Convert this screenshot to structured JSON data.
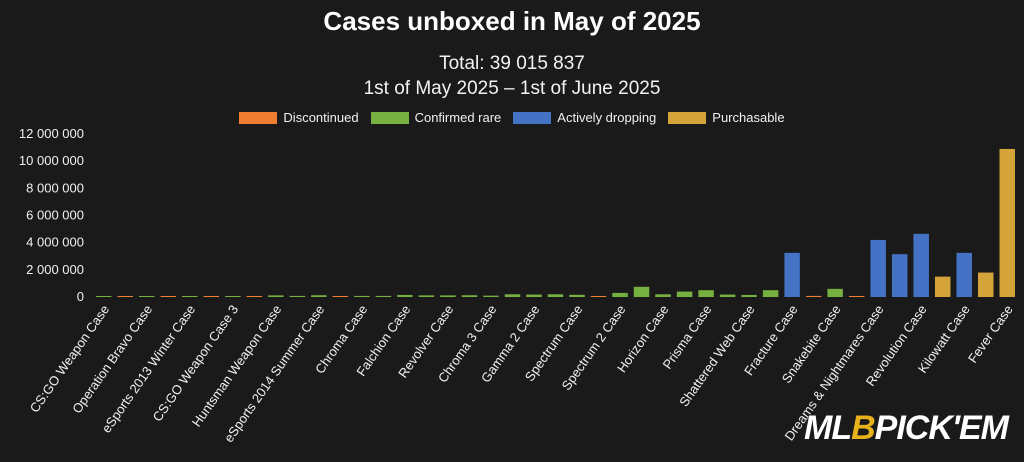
{
  "chart_data": {
    "type": "bar",
    "title": "Cases unboxed in May of 2025",
    "subtitle": [
      "Total: 39 015 837",
      "1st of May 2025 – 1st of June 2025"
    ],
    "xlabel": "",
    "ylabel": "",
    "ylim": [
      0,
      12000000
    ],
    "yticks": [
      0,
      2000000,
      4000000,
      6000000,
      8000000,
      10000000,
      12000000
    ],
    "ytick_labels": [
      "0",
      "2 000 000",
      "4 000 000",
      "6 000 000",
      "8 000 000",
      "10 000 000",
      "12 000 000"
    ],
    "legend_position": "top",
    "legend": [
      {
        "name": "Discontinued",
        "color": "#ef7d32"
      },
      {
        "name": "Confirmed rare",
        "color": "#76b041"
      },
      {
        "name": "Actively dropping",
        "color": "#4472c4"
      },
      {
        "name": "Purchasable",
        "color": "#d4a43a"
      }
    ],
    "categories": [
      "CS:GO Weapon Case",
      "",
      "Operation Bravo Case",
      "",
      "eSports 2013 Winter Case",
      "",
      "CS:GO Weapon Case 3",
      "",
      "Huntsman Weapon Case",
      "",
      "eSports 2014 Summer Case",
      "",
      "Chroma Case",
      "",
      "Falchion Case",
      "",
      "Revolver Case",
      "",
      "Chroma 3 Case",
      "",
      "Gamma 2 Case",
      "",
      "Spectrum Case",
      "",
      "Spectrum 2 Case",
      "",
      "Horizon Case",
      "",
      "Prisma Case",
      "",
      "Shattered Web Case",
      "",
      "Fracture Case",
      "",
      "Snakebite Case",
      "",
      "Dreams & Nightmares Case",
      "",
      "Revolution Case",
      "",
      "Kilowatt Case",
      "",
      "Fever Case"
    ],
    "category_labels": [
      "CS:GO Weapon Case",
      "Operation Bravo Case",
      "eSports 2013 Winter Case",
      "CS:GO Weapon Case 3",
      "Huntsman Weapon Case",
      "eSports 2014 Summer Case",
      "Chroma Case",
      "Falchion Case",
      "Revolver Case",
      "Chroma 3 Case",
      "Gamma 2 Case",
      "Spectrum Case",
      "Spectrum 2 Case",
      "Horizon Case",
      "Prisma Case",
      "Shattered Web Case",
      "Fracture Case",
      "Snakebite Case",
      "Dreams & Nightmares Case",
      "Revolution Case",
      "Kilowatt Case",
      "Fever Case"
    ],
    "values": [
      20000,
      20000,
      30000,
      20000,
      30000,
      30000,
      30000,
      30000,
      120000,
      80000,
      130000,
      30000,
      80000,
      80000,
      150000,
      120000,
      120000,
      130000,
      100000,
      200000,
      180000,
      200000,
      160000,
      50000,
      300000,
      750000,
      200000,
      400000,
      500000,
      180000,
      150000,
      500000,
      3250000,
      80000,
      600000,
      50000,
      4200000,
      3150000,
      4650000,
      1500000,
      3250000,
      1800000,
      10900000
    ],
    "bar_categories": [
      "Confirmed rare",
      "Discontinued",
      "Confirmed rare",
      "Discontinued",
      "Confirmed rare",
      "Discontinued",
      "Confirmed rare",
      "Discontinued",
      "Confirmed rare",
      "Confirmed rare",
      "Confirmed rare",
      "Discontinued",
      "Confirmed rare",
      "Confirmed rare",
      "Confirmed rare",
      "Confirmed rare",
      "Confirmed rare",
      "Confirmed rare",
      "Confirmed rare",
      "Confirmed rare",
      "Confirmed rare",
      "Confirmed rare",
      "Confirmed rare",
      "Discontinued",
      "Confirmed rare",
      "Confirmed rare",
      "Confirmed rare",
      "Confirmed rare",
      "Confirmed rare",
      "Confirmed rare",
      "Confirmed rare",
      "Confirmed rare",
      "Actively dropping",
      "Discontinued",
      "Confirmed rare",
      "Discontinued",
      "Actively dropping",
      "Actively dropping",
      "Actively dropping",
      "Purchasable",
      "Actively dropping",
      "Purchasable",
      "Purchasable"
    ],
    "grid": false
  },
  "watermark": {
    "left": "ML",
    "middle": "B",
    "right": "PICK'EM"
  }
}
